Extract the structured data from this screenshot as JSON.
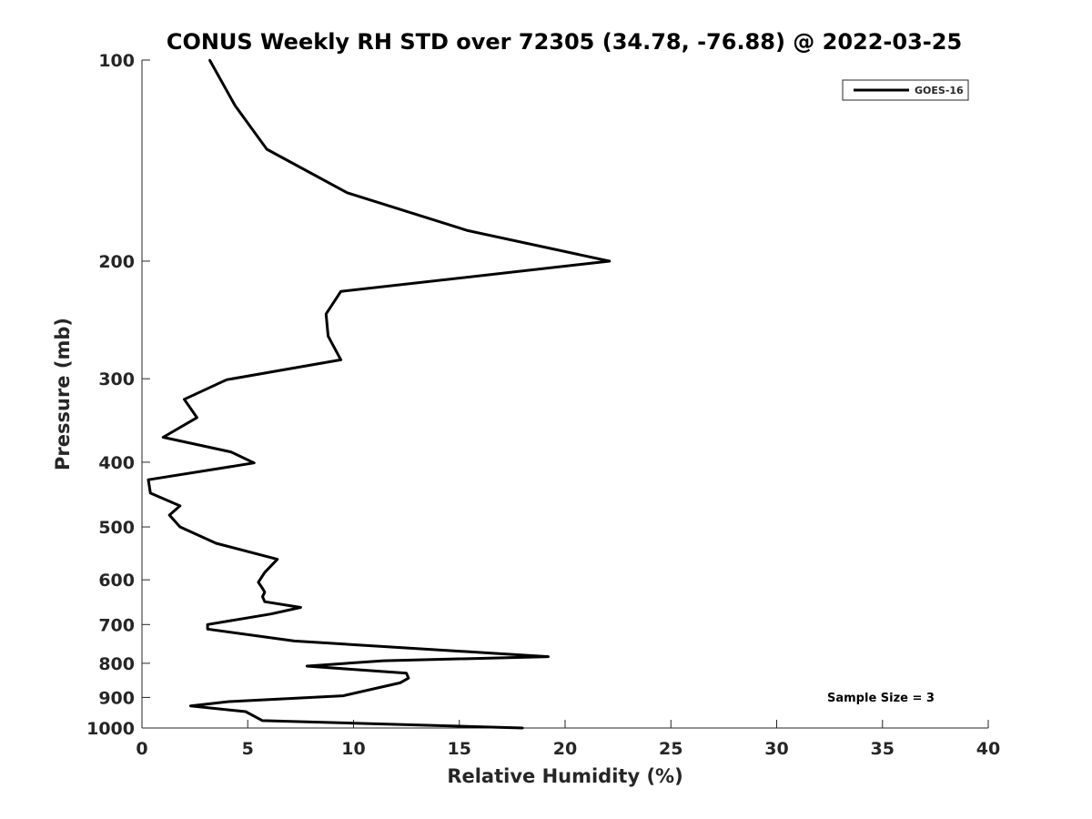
{
  "chart_data": {
    "type": "line",
    "title": "CONUS Weekly RH STD over 72305 (34.78, -76.88) @ 2022-03-25",
    "xlabel": "Relative Humidity (%)",
    "ylabel": "Pressure (mb)",
    "xlim": [
      0,
      40
    ],
    "ylim": [
      1000,
      100
    ],
    "y_scale": "log",
    "y_reversed": true,
    "x_ticks": [
      0,
      5,
      10,
      15,
      20,
      25,
      30,
      35,
      40
    ],
    "y_ticks": [
      100,
      200,
      300,
      400,
      500,
      600,
      700,
      800,
      900,
      1000
    ],
    "grid": false,
    "legend_position": "top-right",
    "series": [
      {
        "name": "GOES-16",
        "color": "#000000",
        "points": [
          [
            3.2,
            100
          ],
          [
            4.4,
            117
          ],
          [
            5.9,
            136
          ],
          [
            9.7,
            158
          ],
          [
            15.4,
            180
          ],
          [
            22.1,
            200
          ],
          [
            9.4,
            222
          ],
          [
            8.7,
            240
          ],
          [
            8.8,
            259
          ],
          [
            9.4,
            281
          ],
          [
            4.0,
            301
          ],
          [
            2.0,
            322
          ],
          [
            2.6,
            343
          ],
          [
            1.0,
            367
          ],
          [
            4.2,
            386
          ],
          [
            5.3,
            401
          ],
          [
            0.3,
            425
          ],
          [
            0.4,
            445
          ],
          [
            1.8,
            465
          ],
          [
            1.3,
            480
          ],
          [
            1.8,
            500
          ],
          [
            3.5,
            529
          ],
          [
            6.4,
            559
          ],
          [
            5.8,
            585
          ],
          [
            5.5,
            605
          ],
          [
            5.7,
            618
          ],
          [
            5.8,
            626
          ],
          [
            5.7,
            636
          ],
          [
            5.8,
            647
          ],
          [
            7.5,
            660
          ],
          [
            6.1,
            675
          ],
          [
            3.1,
            700
          ],
          [
            3.1,
            711
          ],
          [
            7.2,
            741
          ],
          [
            19.2,
            782
          ],
          [
            11.4,
            793
          ],
          [
            7.8,
            808
          ],
          [
            12.5,
            828
          ],
          [
            12.6,
            842
          ],
          [
            12.2,
            856
          ],
          [
            9.5,
            895
          ],
          [
            4.1,
            913
          ],
          [
            2.3,
            927
          ],
          [
            4.9,
            945
          ],
          [
            5.7,
            975
          ],
          [
            18.0,
            1000
          ]
        ]
      }
    ],
    "annotation": "Sample Size = 3"
  }
}
